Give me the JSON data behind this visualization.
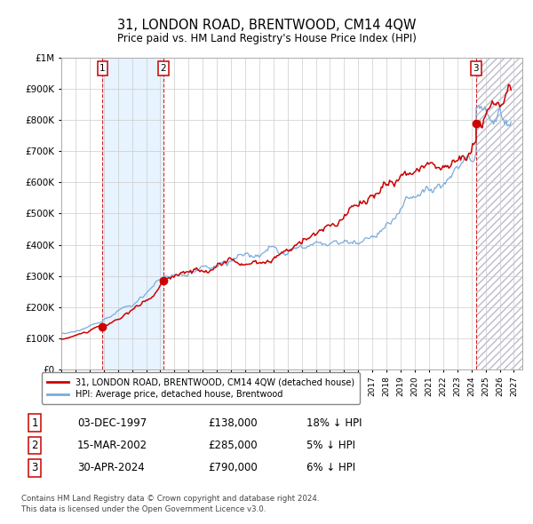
{
  "title": "31, LONDON ROAD, BRENTWOOD, CM14 4QW",
  "subtitle": "Price paid vs. HM Land Registry's House Price Index (HPI)",
  "sale_dates_num": [
    1997.92,
    2002.21,
    2024.33
  ],
  "sale_prices": [
    138000,
    285000,
    790000
  ],
  "sale_labels": [
    "1",
    "2",
    "3"
  ],
  "x_start": 1995.0,
  "x_end": 2027.5,
  "y_max": 1000000,
  "yticks": [
    0,
    100000,
    200000,
    300000,
    400000,
    500000,
    600000,
    700000,
    800000,
    900000,
    1000000
  ],
  "ytick_labels": [
    "£0",
    "£100K",
    "£200K",
    "£300K",
    "£400K",
    "£500K",
    "£600K",
    "£700K",
    "£800K",
    "£900K",
    "£1M"
  ],
  "xticks": [
    1995,
    1996,
    1997,
    1998,
    1999,
    2000,
    2001,
    2002,
    2003,
    2004,
    2005,
    2006,
    2007,
    2008,
    2009,
    2010,
    2011,
    2012,
    2013,
    2014,
    2015,
    2016,
    2017,
    2018,
    2019,
    2020,
    2021,
    2022,
    2023,
    2024,
    2025,
    2026,
    2027
  ],
  "red_line_color": "#cc0000",
  "blue_line_color": "#7aabdb",
  "shading_color": "#ddeeff",
  "dashed_color": "#cc0000",
  "legend_label_red": "31, LONDON ROAD, BRENTWOOD, CM14 4QW (detached house)",
  "legend_label_blue": "HPI: Average price, detached house, Brentwood",
  "table_data": [
    {
      "num": "1",
      "date": "03-DEC-1997",
      "price": "£138,000",
      "hpi": "18% ↓ HPI"
    },
    {
      "num": "2",
      "date": "15-MAR-2002",
      "price": "£285,000",
      "hpi": "5% ↓ HPI"
    },
    {
      "num": "3",
      "date": "30-APR-2024",
      "price": "£790,000",
      "hpi": "6% ↓ HPI"
    }
  ],
  "footnote": "Contains HM Land Registry data © Crown copyright and database right 2024.\nThis data is licensed under the Open Government Licence v3.0."
}
